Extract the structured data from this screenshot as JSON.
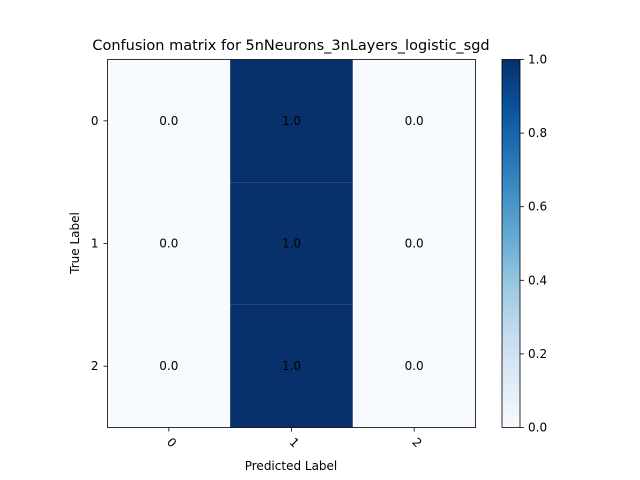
{
  "chart_data": {
    "type": "heatmap",
    "title": "Confusion matrix for 5nNeurons_3nLayers_logistic_sgd",
    "xlabel": "Predicted Label",
    "ylabel": "True Label",
    "x_categories": [
      "0",
      "1",
      "2"
    ],
    "y_categories": [
      "0",
      "1",
      "2"
    ],
    "values": [
      [
        0.0,
        1.0,
        0.0
      ],
      [
        0.0,
        1.0,
        0.0
      ],
      [
        0.0,
        1.0,
        0.0
      ]
    ],
    "cell_labels": [
      [
        "0.0",
        "1.0",
        "0.0"
      ],
      [
        "0.0",
        "1.0",
        "0.0"
      ],
      [
        "0.0",
        "1.0",
        "0.0"
      ]
    ],
    "colormap": "Blues",
    "color_low": "#f7fbff",
    "color_high": "#08306b",
    "colorbar": {
      "min": 0.0,
      "max": 1.0,
      "ticks": [
        "0.0",
        "0.2",
        "0.4",
        "0.6",
        "0.8",
        "1.0"
      ]
    },
    "x_tick_rotation": "45",
    "grid": false
  }
}
